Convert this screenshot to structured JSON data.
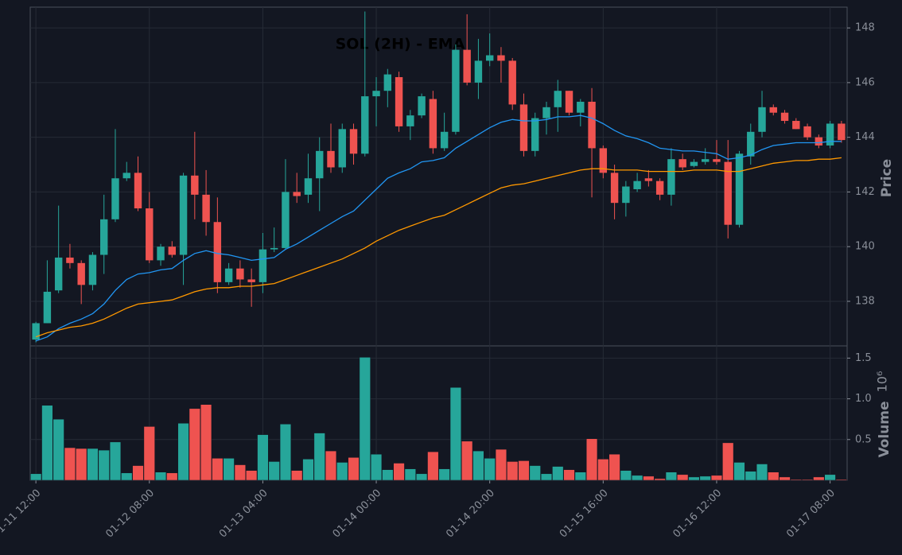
{
  "chart_data": {
    "type": "candlestick",
    "title": "SOL (2H) - EMA",
    "ylabel": "Price",
    "up_color": "#26a69a",
    "down_color": "#ef5350",
    "grid": true,
    "categories": [
      "01-11 12:00",
      null,
      null,
      null,
      null,
      null,
      null,
      null,
      null,
      null,
      "01-12 08:00",
      null,
      null,
      null,
      null,
      null,
      null,
      null,
      null,
      null,
      "01-13 04:00",
      null,
      null,
      null,
      null,
      null,
      null,
      null,
      null,
      null,
      "01-14 00:00",
      null,
      null,
      null,
      null,
      null,
      null,
      null,
      null,
      null,
      "01-14 20:00",
      null,
      null,
      null,
      null,
      null,
      null,
      null,
      null,
      null,
      "01-15 16:00",
      null,
      null,
      null,
      null,
      null,
      null,
      null,
      null,
      null,
      "01-16 12:00",
      null,
      null,
      null,
      null,
      null,
      null,
      null,
      null,
      null,
      "01-17 08:00",
      null
    ],
    "open": [
      136.6,
      137.2,
      138.4,
      139.6,
      139.4,
      138.6,
      139.7,
      141.0,
      142.5,
      142.7,
      141.4,
      139.5,
      140.0,
      139.7,
      142.6,
      141.9,
      140.9,
      138.7,
      139.2,
      138.8,
      138.7,
      139.9,
      139.95,
      142.0,
      141.9,
      142.5,
      143.5,
      142.9,
      144.3,
      143.4,
      145.5,
      145.7,
      146.2,
      144.4,
      144.8,
      145.4,
      143.6,
      144.2,
      147.2,
      146.0,
      146.8,
      147.0,
      146.8,
      145.2,
      143.5,
      144.7,
      145.1,
      145.7,
      144.9,
      145.3,
      143.6,
      142.7,
      141.6,
      142.1,
      142.5,
      142.4,
      141.9,
      143.2,
      142.95,
      143.1,
      143.2,
      143.1,
      140.8,
      143.3,
      144.2,
      145.1,
      144.9,
      144.6,
      144.4,
      144.0,
      143.7,
      144.5
    ],
    "high": [
      137.25,
      139.5,
      141.5,
      140.1,
      139.5,
      139.8,
      141.9,
      144.3,
      143.1,
      143.3,
      142.0,
      140.1,
      140.2,
      142.7,
      144.2,
      142.8,
      141.8,
      139.4,
      139.5,
      139.2,
      140.5,
      140.7,
      143.2,
      142.7,
      143.4,
      144.0,
      144.5,
      144.5,
      144.5,
      148.6,
      146.2,
      146.5,
      146.4,
      145.0,
      145.6,
      145.7,
      144.9,
      147.4,
      148.5,
      147.6,
      147.8,
      147.3,
      146.9,
      145.6,
      144.9,
      145.3,
      146.1,
      145.7,
      145.4,
      145.8,
      143.7,
      143.0,
      142.4,
      142.7,
      142.8,
      142.5,
      143.6,
      143.4,
      143.2,
      143.6,
      143.9,
      143.9,
      143.5,
      144.5,
      145.7,
      145.2,
      145.0,
      144.7,
      144.5,
      144.1,
      144.6,
      144.6
    ],
    "low": [
      136.5,
      137.2,
      138.3,
      139.2,
      137.9,
      138.4,
      139.0,
      140.9,
      142.4,
      141.3,
      139.4,
      139.3,
      139.6,
      138.6,
      141.0,
      140.4,
      138.3,
      138.6,
      138.5,
      137.8,
      138.3,
      139.8,
      139.9,
      141.6,
      141.6,
      141.3,
      142.7,
      142.7,
      143.0,
      143.3,
      144.4,
      145.1,
      144.2,
      143.9,
      144.7,
      143.4,
      143.5,
      144.1,
      145.9,
      145.4,
      146.6,
      146.0,
      145.0,
      143.3,
      143.3,
      144.1,
      144.2,
      144.8,
      144.4,
      141.8,
      142.5,
      141.0,
      141.1,
      142.0,
      142.2,
      141.7,
      141.5,
      142.8,
      142.9,
      143.0,
      143.0,
      140.3,
      140.7,
      143.0,
      144.0,
      144.8,
      144.5,
      144.3,
      143.9,
      143.6,
      143.6,
      143.8
    ],
    "close": [
      137.2,
      138.35,
      139.6,
      139.4,
      138.6,
      139.7,
      141.0,
      142.5,
      142.7,
      141.4,
      139.5,
      140.0,
      139.7,
      142.6,
      141.9,
      140.9,
      138.7,
      139.2,
      138.8,
      138.7,
      139.9,
      139.95,
      142.0,
      141.85,
      142.5,
      143.5,
      142.9,
      144.3,
      143.4,
      145.5,
      145.7,
      146.3,
      144.4,
      144.8,
      145.5,
      143.6,
      144.2,
      147.2,
      146.0,
      146.8,
      147.0,
      146.8,
      145.2,
      143.5,
      144.7,
      145.1,
      145.7,
      144.9,
      145.3,
      143.6,
      142.7,
      141.6,
      142.2,
      142.4,
      142.4,
      141.9,
      143.2,
      142.9,
      143.1,
      143.2,
      143.1,
      140.8,
      143.4,
      144.2,
      145.1,
      144.9,
      144.6,
      144.3,
      144.0,
      143.7,
      144.5,
      143.9
    ],
    "series": [
      {
        "color": "#2196f3",
        "values": [
          136.55,
          136.7,
          137.0,
          137.2,
          137.35,
          137.55,
          137.9,
          138.4,
          138.8,
          139.0,
          139.05,
          139.15,
          139.2,
          139.5,
          139.75,
          139.85,
          139.75,
          139.7,
          139.6,
          139.5,
          139.55,
          139.6,
          139.9,
          140.1,
          140.35,
          140.6,
          140.85,
          141.1,
          141.3,
          141.7,
          142.1,
          142.5,
          142.7,
          142.85,
          143.1,
          143.15,
          143.25,
          143.6,
          143.85,
          144.1,
          144.35,
          144.55,
          144.65,
          144.6,
          144.6,
          144.65,
          144.75,
          144.75,
          144.8,
          144.7,
          144.5,
          144.25,
          144.05,
          143.95,
          143.8,
          143.6,
          143.55,
          143.5,
          143.5,
          143.45,
          143.4,
          143.2,
          143.25,
          143.35,
          143.55,
          143.7,
          143.75,
          143.8,
          143.8,
          143.8,
          143.85,
          143.85
        ]
      },
      {
        "color": "#ff9800",
        "values": [
          136.7,
          136.85,
          136.95,
          137.05,
          137.1,
          137.2,
          137.35,
          137.55,
          137.75,
          137.9,
          137.95,
          138.0,
          138.05,
          138.2,
          138.35,
          138.45,
          138.5,
          138.5,
          138.55,
          138.55,
          138.6,
          138.65,
          138.8,
          138.95,
          139.1,
          139.25,
          139.4,
          139.55,
          139.75,
          139.95,
          140.2,
          140.4,
          140.6,
          140.75,
          140.9,
          141.05,
          141.15,
          141.35,
          141.55,
          141.75,
          141.95,
          142.15,
          142.25,
          142.3,
          142.4,
          142.5,
          142.6,
          142.7,
          142.8,
          142.85,
          142.85,
          142.8,
          142.8,
          142.8,
          142.75,
          142.75,
          142.75,
          142.75,
          142.8,
          142.8,
          142.8,
          142.75,
          142.75,
          142.85,
          142.95,
          143.05,
          143.1,
          143.15,
          143.15,
          143.2,
          143.2,
          143.25
        ]
      }
    ],
    "ylim": [
      136.37,
      148.76
    ],
    "yticks": [
      138,
      140,
      142,
      144,
      146,
      148
    ],
    "volume": {
      "label": "Volume",
      "offset": "10⁶",
      "values": [
        0.08,
        0.92,
        0.75,
        0.4,
        0.39,
        0.39,
        0.37,
        0.47,
        0.09,
        0.18,
        0.66,
        0.1,
        0.09,
        0.7,
        0.88,
        0.93,
        0.27,
        0.27,
        0.19,
        0.12,
        0.56,
        0.23,
        0.69,
        0.12,
        0.26,
        0.58,
        0.36,
        0.22,
        0.28,
        1.51,
        0.32,
        0.13,
        0.21,
        0.14,
        0.08,
        0.35,
        0.14,
        1.14,
        0.48,
        0.36,
        0.27,
        0.38,
        0.23,
        0.24,
        0.18,
        0.08,
        0.17,
        0.13,
        0.1,
        0.51,
        0.26,
        0.32,
        0.12,
        0.06,
        0.05,
        0.02,
        0.1,
        0.07,
        0.04,
        0.05,
        0.06,
        0.46,
        0.22,
        0.11,
        0.2,
        0.1,
        0.04,
        0.01,
        0.01,
        0.04,
        0.07,
        0.01
      ],
      "ylim": [
        0,
        1.65
      ],
      "yticks": [
        0.5,
        {
          "value": 1,
          "label": "1.0"
        },
        1.5
      ]
    }
  }
}
